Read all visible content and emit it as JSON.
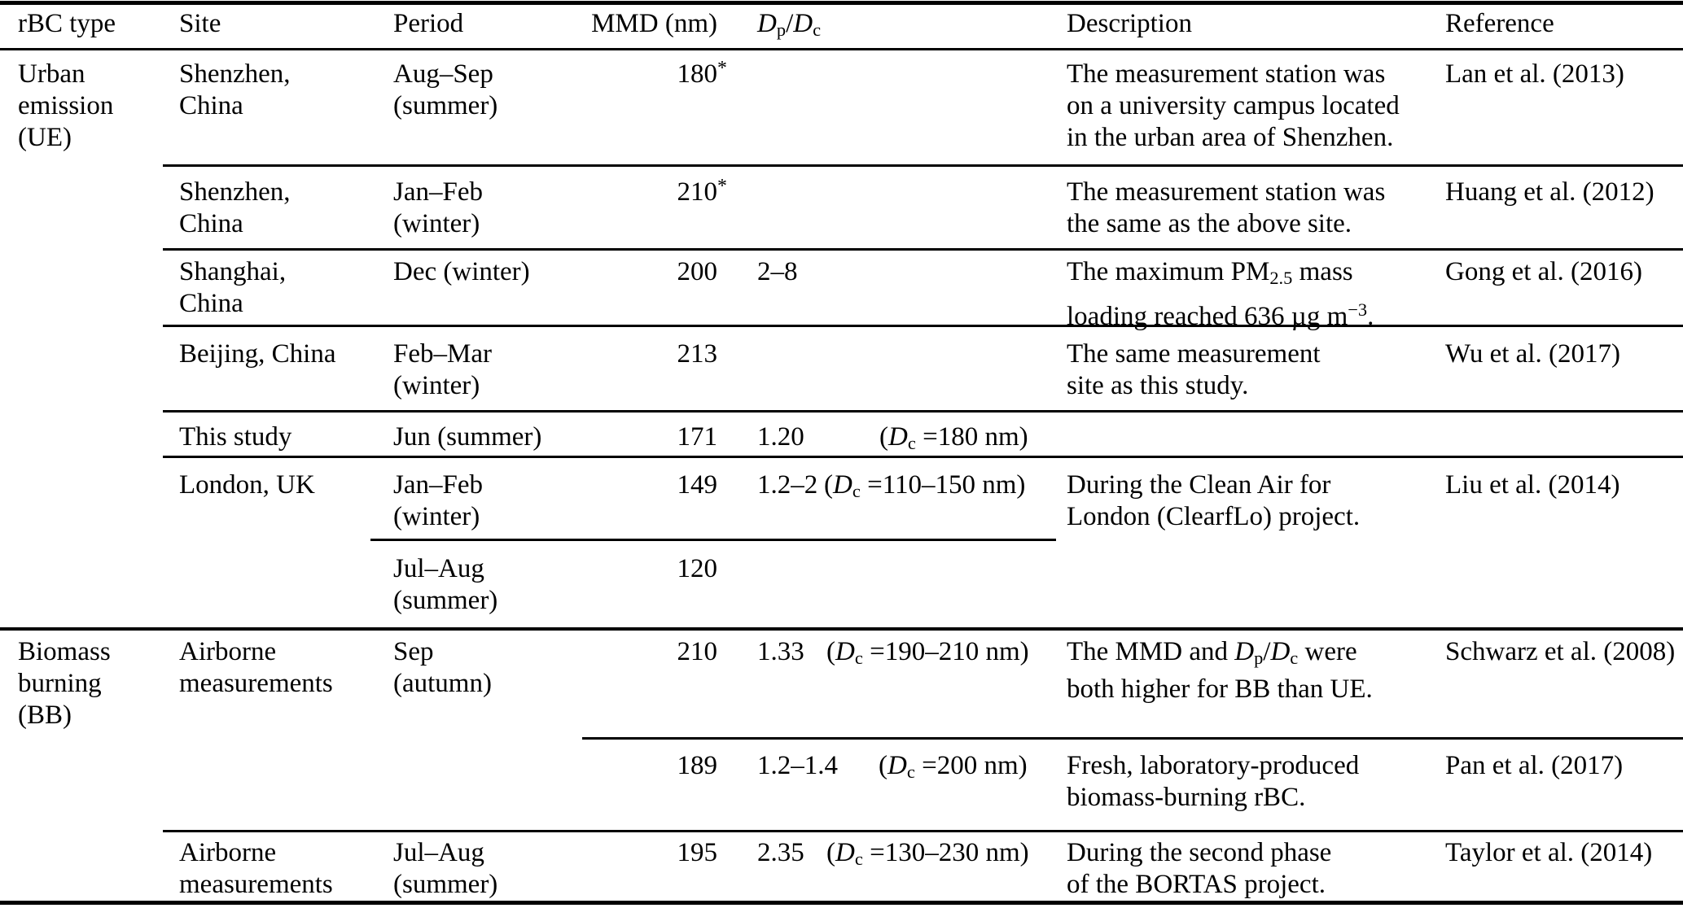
{
  "header": {
    "rbc_type": "rBC type",
    "site": "Site",
    "period": "Period",
    "mmd": "MMD (nm)",
    "dpdc": {
      "d1": "D",
      "sub1": "p",
      "slash": "/",
      "d2": "D",
      "sub2": "c"
    },
    "description": "Description",
    "reference": "Reference"
  },
  "dc_label": {
    "open": "(",
    "d": "D",
    "sub": "c",
    "eq": " ="
  },
  "groups": {
    "ue": {
      "l1": "Urban",
      "l2": "emission",
      "l3": "(UE)"
    },
    "bb": {
      "l1": "Biomass",
      "l2": "burning",
      "l3": "(BB)"
    }
  },
  "rows": {
    "r1": {
      "site1": "Shenzhen,",
      "site2": "China",
      "period1": "Aug–Sep",
      "period2": "(summer)",
      "mmd": "180",
      "star": "*",
      "desc1": "The measurement station was",
      "desc2": "on a university campus located",
      "desc3": "in the urban area of Shenzhen.",
      "ref": "Lan et al. (2013)"
    },
    "r2": {
      "site1": "Shenzhen,",
      "site2": "China",
      "period1": "Jan–Feb",
      "period2": "(winter)",
      "mmd": "210",
      "star": "*",
      "desc1": "The measurement station was",
      "desc2": "the same as the above site.",
      "ref": "Huang et al. (2012)"
    },
    "r3": {
      "site1": "Shanghai,",
      "site2": "China",
      "period1": "Dec (winter)",
      "mmd": "200",
      "ratio": "2–8",
      "desc1a": "The maximum PM",
      "desc1sub": "2.5",
      "desc1b": " mass",
      "desc2a": "loading reached 636 µg m",
      "desc2sup": "−3",
      "desc2b": ".",
      "ref": "Gong et al. (2016)"
    },
    "r4": {
      "site1": "Beijing, China",
      "period1": "Feb–Mar",
      "period2": "(winter)",
      "mmd": "213",
      "desc1": "The same measurement",
      "desc2": "site as this study.",
      "ref": "Wu et al. (2017)"
    },
    "r5": {
      "site1": "This study",
      "period1": "Jun (summer)",
      "mmd": "171",
      "ratio": "1.20",
      "dc_val": "180 nm)"
    },
    "r6": {
      "site1": "London, UK",
      "period1": "Jan–Feb",
      "period2": "(winter)",
      "mmd": "149",
      "ratio": "1.2–2",
      "dc_val": "110–150 nm)",
      "desc1": "During the Clean Air for",
      "desc2": "London (ClearfLo) project.",
      "ref": "Liu et al. (2014)"
    },
    "r7": {
      "period1": "Jul–Aug",
      "period2": "(summer)",
      "mmd": "120"
    },
    "r8": {
      "site1": "Airborne",
      "site2": "measurements",
      "period1": "Sep",
      "period2": "(autumn)",
      "mmd": "210",
      "ratio": "1.33",
      "dc_val": "190–210 nm)",
      "desc1a": "The MMD and ",
      "desc1d1": "D",
      "desc1sub1": "p",
      "desc1slash": "/",
      "desc1d2": "D",
      "desc1sub2": "c",
      "desc1b": " were",
      "desc2": "both higher for BB than UE.",
      "ref": "Schwarz et al. (2008)"
    },
    "r9": {
      "mmd": "189",
      "ratio": "1.2–1.4",
      "dc_val": "200 nm)",
      "desc1": "Fresh, laboratory-produced",
      "desc2": "biomass-burning rBC.",
      "ref": "Pan et al. (2017)"
    },
    "r10": {
      "site1": "Airborne",
      "site2": "measurements",
      "period1": "Jul–Aug",
      "period2": "(summer)",
      "mmd": "195",
      "ratio": "2.35",
      "dc_val": "130–230 nm)",
      "desc1": "During the second phase",
      "desc2": "of the BORTAS project.",
      "ref": "Taylor et al. (2014)"
    }
  }
}
